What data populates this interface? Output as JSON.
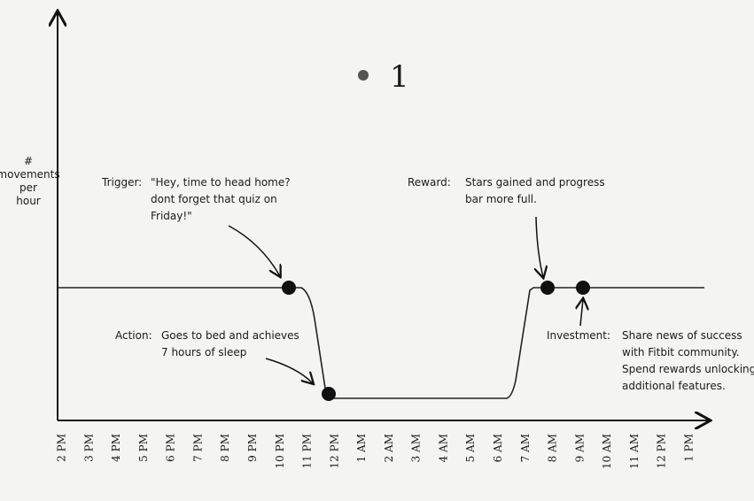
{
  "marker": "1",
  "y_axis_label": [
    "#",
    "movements",
    "per",
    "hour"
  ],
  "x_labels": [
    "2 PM",
    "3 PM",
    "4 PM",
    "5 PM",
    "6 PM",
    "7 PM",
    "8 PM",
    "9 PM",
    "10 PM",
    "11 PM",
    "12 PM",
    "1 AM",
    "2 AM",
    "3 AM",
    "4 AM",
    "5 AM",
    "6 AM",
    "7 AM",
    "8 AM",
    "9 AM",
    "10 AM",
    "11 AM",
    "12 PM",
    "1 PM"
  ],
  "annotations": [
    {
      "label": "Trigger:",
      "lines": [
        "\"Hey, time to head home?",
        "dont forget that quiz on",
        "Friday!\""
      ]
    },
    {
      "label": "Reward:",
      "lines": [
        "Stars gained and progress",
        "bar more full."
      ]
    },
    {
      "label": "Action:",
      "lines": [
        "Goes to bed and achieves",
        "7 hours of sleep"
      ]
    },
    {
      "label": "Investment:",
      "lines": [
        "Share news of success",
        "with Fitbit community.",
        "Spend rewards unlocking",
        "additional features."
      ]
    }
  ]
}
